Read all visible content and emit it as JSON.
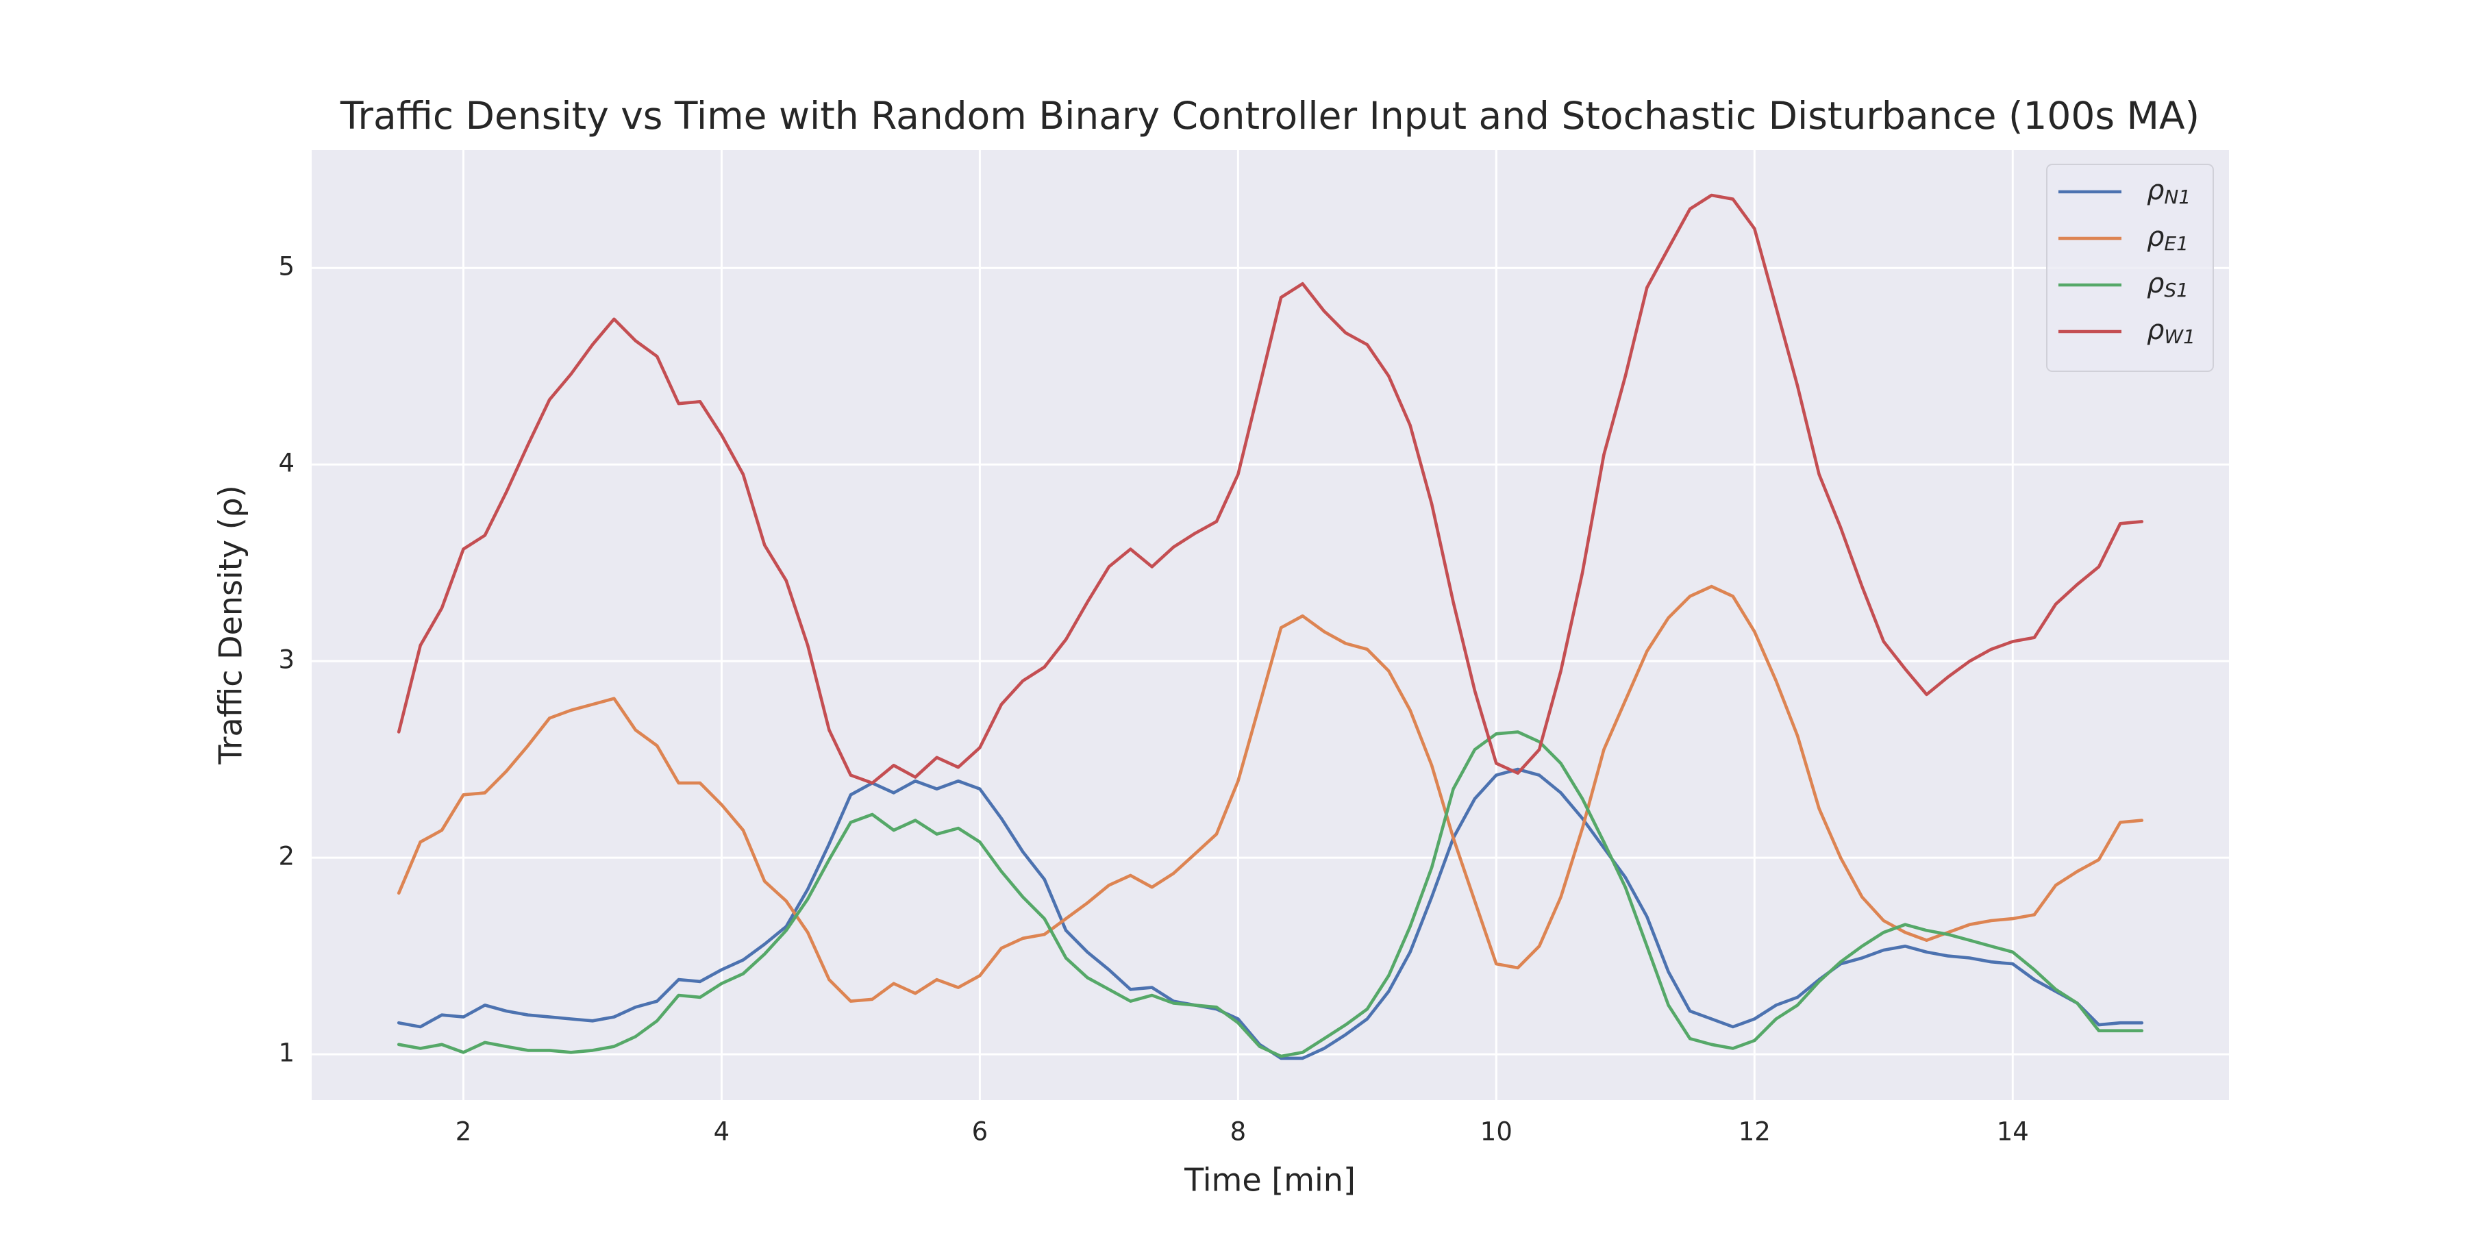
{
  "chart_data": {
    "type": "line",
    "title": "Traffic Density vs Time with Random Binary Controller Input and Stochastic Disturbance (100s MA)",
    "xlabel": "Time [min]",
    "ylabel": "Traffic Density (ρ)",
    "x": [
      1.5,
      1.667,
      1.833,
      2,
      2.167,
      2.333,
      2.5,
      2.667,
      2.833,
      3,
      3.167,
      3.333,
      3.5,
      3.667,
      3.833,
      4,
      4.167,
      4.333,
      4.5,
      4.667,
      4.833,
      5,
      5.167,
      5.333,
      5.5,
      5.667,
      5.833,
      6,
      6.167,
      6.333,
      6.5,
      6.667,
      6.833,
      7,
      7.167,
      7.333,
      7.5,
      7.667,
      7.833,
      8,
      8.167,
      8.333,
      8.5,
      8.667,
      8.833,
      9,
      9.167,
      9.333,
      9.5,
      9.667,
      9.833,
      10,
      10.167,
      10.333,
      10.5,
      10.667,
      10.833,
      11,
      11.167,
      11.333,
      11.5,
      11.667,
      11.833,
      12,
      12.167,
      12.333,
      12.5,
      12.667,
      12.833,
      13,
      13.167,
      13.333,
      13.5,
      13.667,
      13.833,
      14,
      14.167,
      14.333,
      14.5,
      14.667,
      14.833,
      15
    ],
    "series": [
      {
        "name": "ρN1",
        "color": "#4c72b0",
        "values": [
          1.16,
          1.14,
          1.2,
          1.19,
          1.25,
          1.22,
          1.2,
          1.19,
          1.18,
          1.17,
          1.19,
          1.24,
          1.27,
          1.38,
          1.37,
          1.43,
          1.48,
          1.56,
          1.65,
          1.84,
          2.07,
          2.32,
          2.38,
          2.33,
          2.39,
          2.35,
          2.39,
          2.35,
          2.2,
          2.03,
          1.89,
          1.63,
          1.52,
          1.43,
          1.33,
          1.34,
          1.27,
          1.25,
          1.23,
          1.18,
          1.05,
          0.98,
          0.98,
          1.03,
          1.1,
          1.18,
          1.32,
          1.52,
          1.8,
          2.1,
          2.3,
          2.42,
          2.45,
          2.42,
          2.33,
          2.2,
          2.05,
          1.9,
          1.7,
          1.42,
          1.22,
          1.18,
          1.14,
          1.18,
          1.25,
          1.29,
          1.38,
          1.46,
          1.49,
          1.53,
          1.55,
          1.52,
          1.5,
          1.49,
          1.47,
          1.46,
          1.38,
          1.32,
          1.26,
          1.15,
          1.16,
          1.16
        ]
      },
      {
        "name": "ρE1",
        "color": "#dd8452",
        "values": [
          1.82,
          2.08,
          2.14,
          2.32,
          2.33,
          2.44,
          2.57,
          2.71,
          2.75,
          2.78,
          2.81,
          2.65,
          2.57,
          2.38,
          2.38,
          2.27,
          2.14,
          1.88,
          1.78,
          1.62,
          1.38,
          1.27,
          1.28,
          1.36,
          1.31,
          1.38,
          1.34,
          1.4,
          1.54,
          1.59,
          1.61,
          1.69,
          1.77,
          1.86,
          1.91,
          1.85,
          1.92,
          2.02,
          2.12,
          2.39,
          2.78,
          3.17,
          3.23,
          3.15,
          3.09,
          3.06,
          2.95,
          2.75,
          2.47,
          2.1,
          1.78,
          1.46,
          1.44,
          1.55,
          1.8,
          2.15,
          2.55,
          2.8,
          3.05,
          3.22,
          3.33,
          3.38,
          3.33,
          3.15,
          2.9,
          2.62,
          2.25,
          2.0,
          1.8,
          1.68,
          1.62,
          1.58,
          1.62,
          1.66,
          1.68,
          1.69,
          1.71,
          1.86,
          1.93,
          1.99,
          2.18,
          2.19
        ]
      },
      {
        "name": "ρS1",
        "color": "#55a868",
        "values": [
          1.05,
          1.03,
          1.05,
          1.01,
          1.06,
          1.04,
          1.02,
          1.02,
          1.01,
          1.02,
          1.04,
          1.09,
          1.17,
          1.3,
          1.29,
          1.36,
          1.41,
          1.51,
          1.63,
          1.79,
          1.99,
          2.18,
          2.22,
          2.14,
          2.19,
          2.12,
          2.15,
          2.08,
          1.93,
          1.8,
          1.69,
          1.49,
          1.39,
          1.33,
          1.27,
          1.3,
          1.26,
          1.25,
          1.24,
          1.16,
          1.04,
          0.99,
          1.01,
          1.08,
          1.15,
          1.23,
          1.4,
          1.65,
          1.95,
          2.35,
          2.55,
          2.63,
          2.64,
          2.59,
          2.48,
          2.3,
          2.08,
          1.85,
          1.55,
          1.25,
          1.08,
          1.05,
          1.03,
          1.07,
          1.18,
          1.25,
          1.37,
          1.47,
          1.55,
          1.62,
          1.66,
          1.63,
          1.61,
          1.58,
          1.55,
          1.52,
          1.43,
          1.33,
          1.26,
          1.12,
          1.12,
          1.12
        ]
      },
      {
        "name": "ρW1",
        "color": "#c44e52",
        "values": [
          2.64,
          3.08,
          3.27,
          3.57,
          3.64,
          3.86,
          4.1,
          4.33,
          4.46,
          4.61,
          4.74,
          4.63,
          4.55,
          4.31,
          4.32,
          4.15,
          3.95,
          3.59,
          3.41,
          3.08,
          2.65,
          2.42,
          2.38,
          2.47,
          2.41,
          2.51,
          2.46,
          2.56,
          2.78,
          2.9,
          2.97,
          3.11,
          3.3,
          3.48,
          3.57,
          3.48,
          3.58,
          3.65,
          3.71,
          3.95,
          4.4,
          4.85,
          4.92,
          4.78,
          4.67,
          4.61,
          4.45,
          4.2,
          3.8,
          3.3,
          2.85,
          2.48,
          2.43,
          2.55,
          2.95,
          3.45,
          4.05,
          4.45,
          4.9,
          5.1,
          5.3,
          5.37,
          5.35,
          5.2,
          4.8,
          4.4,
          3.95,
          3.68,
          3.38,
          3.1,
          2.96,
          2.83,
          2.92,
          3.0,
          3.06,
          3.1,
          3.12,
          3.29,
          3.39,
          3.48,
          3.7,
          3.71
        ]
      }
    ],
    "xlim": [
      0.825,
      15.675
    ],
    "xticks": [
      2,
      4,
      6,
      8,
      10,
      12,
      14
    ],
    "ylim": [
      0.767,
      5.6
    ],
    "yticks": [
      1,
      2,
      3,
      4,
      5
    ],
    "grid": true,
    "legend": "upper right"
  }
}
